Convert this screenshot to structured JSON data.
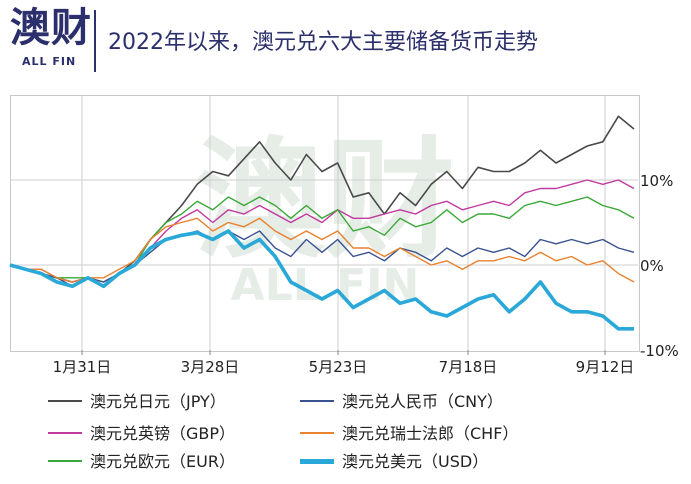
{
  "header": {
    "logo_cn": "澳财",
    "logo_en": "ALL FIN",
    "title": "2022年以来，澳元兑六大主要储备货币走势"
  },
  "watermark": {
    "cn": "澳财",
    "en": "ALL FIN"
  },
  "chart_data": {
    "type": "line",
    "x_ticks": [
      "1月31日",
      "3月28日",
      "5月23日",
      "7月18日",
      "9月12日"
    ],
    "y_ticks": [
      "10%",
      "0%",
      "-10%"
    ],
    "ylim": [
      -10,
      20
    ],
    "grid": true,
    "legend_position": "bottom",
    "series": [
      {
        "name": "澳元兑日元（JPY）",
        "color": "#4a4a4a",
        "width": 1.6,
        "values": [
          0,
          -0.5,
          -1,
          -1.5,
          -2,
          -1.5,
          -2.5,
          -1,
          0.5,
          3,
          5,
          7,
          9.5,
          11,
          10.5,
          12.5,
          14.5,
          12,
          10,
          13,
          11,
          12,
          8,
          8.5,
          6,
          8.5,
          7,
          9.5,
          11,
          9,
          11.5,
          11,
          11,
          12,
          13.5,
          12,
          13,
          14,
          14.5,
          17.5,
          16
        ]
      },
      {
        "name": "澳元兑英镑（GBP）",
        "color": "#c03aa0",
        "width": 1.4,
        "values": [
          0,
          -0.5,
          -0.5,
          -1.5,
          -2,
          -1.5,
          -2,
          -1,
          0,
          2,
          4,
          5.5,
          6.5,
          5,
          6.5,
          6,
          7,
          6,
          5,
          6,
          5,
          6.5,
          5.5,
          5.5,
          6,
          6.5,
          6,
          7,
          7.5,
          6.5,
          7,
          7.5,
          7,
          8.5,
          9,
          9,
          9.5,
          10,
          9.5,
          10,
          9
        ]
      },
      {
        "name": "澳元兑欧元（EUR）",
        "color": "#3aa838",
        "width": 1.4,
        "values": [
          0,
          -0.5,
          -1,
          -1.5,
          -1.5,
          -1.5,
          -2,
          -1,
          0,
          3,
          5,
          6,
          7.5,
          6.5,
          8,
          7,
          8,
          7,
          5.5,
          7,
          5.5,
          6.5,
          4,
          4.5,
          3.5,
          5.5,
          4.5,
          5,
          6.5,
          5,
          6,
          6,
          5.5,
          7,
          7.5,
          7,
          7.5,
          8,
          7,
          6.5,
          5.5
        ]
      },
      {
        "name": "澳元兑人民币（CNY）",
        "color": "#3a5290",
        "width": 1.4,
        "values": [
          0,
          -0.5,
          -1,
          -1.5,
          -2.5,
          -1.5,
          -2,
          -1,
          0,
          1.5,
          3,
          3.5,
          4,
          3,
          4,
          3,
          4,
          2,
          1,
          3,
          1.5,
          3,
          1,
          1.5,
          0.5,
          2,
          1.5,
          0.5,
          2,
          1,
          2,
          1.5,
          2,
          1,
          3,
          2.5,
          3,
          2.5,
          3,
          2,
          1.5
        ]
      },
      {
        "name": "澳元兑瑞士法郎（CHF）",
        "color": "#e8822f",
        "width": 1.4,
        "values": [
          0,
          -0.5,
          -0.5,
          -1.5,
          -2,
          -1.5,
          -1.5,
          -0.5,
          0.5,
          3,
          4.5,
          5,
          5.5,
          4,
          5,
          4.5,
          5.5,
          4,
          3,
          4,
          3,
          4,
          2,
          2,
          1,
          2,
          1,
          0,
          0.5,
          -0.5,
          0.5,
          0.5,
          1,
          0.5,
          1.5,
          0.5,
          1,
          0,
          0.5,
          -1,
          -2
        ]
      },
      {
        "name": "澳元兑美元（USD）",
        "color": "#2aa8d8",
        "width": 3.6,
        "values": [
          0,
          -0.5,
          -1,
          -2,
          -2.5,
          -1.5,
          -2.5,
          -1,
          0,
          2,
          3,
          3.5,
          3.8,
          3,
          4,
          2,
          3,
          1,
          -2,
          -3,
          -4,
          -3,
          -5,
          -4,
          -3,
          -4.5,
          -4,
          -5.5,
          -6,
          -5,
          -4,
          -3.5,
          -5.5,
          -4,
          -2,
          -4.5,
          -5.5,
          -5.5,
          -6,
          -7.5,
          -7.5
        ]
      }
    ]
  }
}
